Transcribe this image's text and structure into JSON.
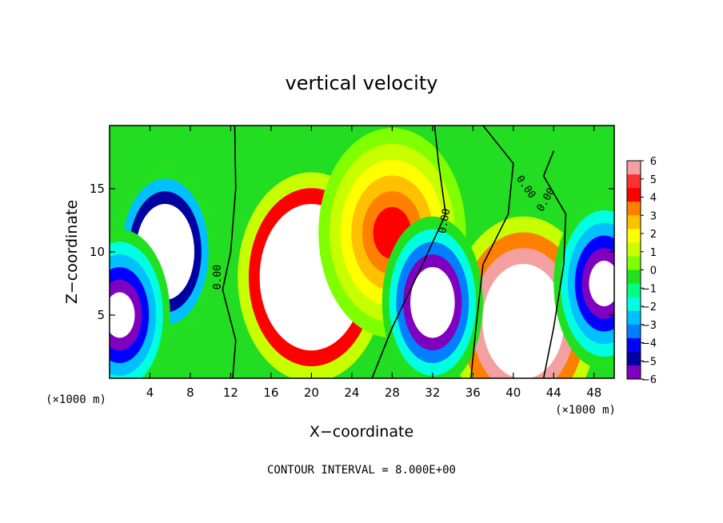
{
  "chart_data": {
    "type": "heatmap",
    "title": "vertical velocity",
    "xlabel": "X−coordinate",
    "ylabel": "Z−coordinate",
    "x_unit_label": "(×1000 m)",
    "x_ticks": [
      4,
      8,
      12,
      16,
      20,
      24,
      28,
      32,
      36,
      40,
      44,
      48
    ],
    "y_ticks": [
      5,
      10,
      15
    ],
    "xlim": [
      0,
      50
    ],
    "ylim": [
      0,
      20
    ],
    "grid": false,
    "contour_interval_label": "CONTOUR INTERVAL = 8.000E+00",
    "contour_labels": [
      {
        "text": "0.00",
        "x": 11,
        "y": 8,
        "angle": -90
      },
      {
        "text": "0.00",
        "x": 33.5,
        "y": 12.4,
        "angle": -80
      },
      {
        "text": "0.00",
        "x": 41,
        "y": 15,
        "angle": 55
      },
      {
        "text": "0.00",
        "x": 43.5,
        "y": 14,
        "angle": -60
      }
    ],
    "colorbar": {
      "ticks": [
        "6",
        "5",
        "4",
        "3",
        "2",
        "1",
        "0",
        "−1",
        "−2",
        "−3",
        "−4",
        "−5",
        "−6"
      ],
      "min": -6,
      "max": 6,
      "colors": [
        "#f4a0a0",
        "#ff3030",
        "#ff0000",
        "#ff8000",
        "#ffc000",
        "#ffff00",
        "#c8ff00",
        "#80ff00",
        "#20e020",
        "#00ff80",
        "#00ffe0",
        "#00c0ff",
        "#0080ff",
        "#0000ff",
        "#0000a0",
        "#8000c0"
      ]
    },
    "features": [
      {
        "kind": "updraft",
        "x": 20,
        "z": 8,
        "peak": 20
      },
      {
        "kind": "updraft",
        "x": 41,
        "z": 4.5,
        "peak": 16
      },
      {
        "kind": "updraft",
        "x": 28,
        "z": 11.5,
        "peak": 5
      },
      {
        "kind": "downdraft",
        "x": 5.5,
        "z": 10,
        "peak": -14
      },
      {
        "kind": "downdraft",
        "x": 1,
        "z": 5,
        "peak": -8
      },
      {
        "kind": "downdraft",
        "x": 32,
        "z": 6,
        "peak": -10
      },
      {
        "kind": "downdraft",
        "x": 49,
        "z": 7.5,
        "peak": -8
      }
    ]
  }
}
